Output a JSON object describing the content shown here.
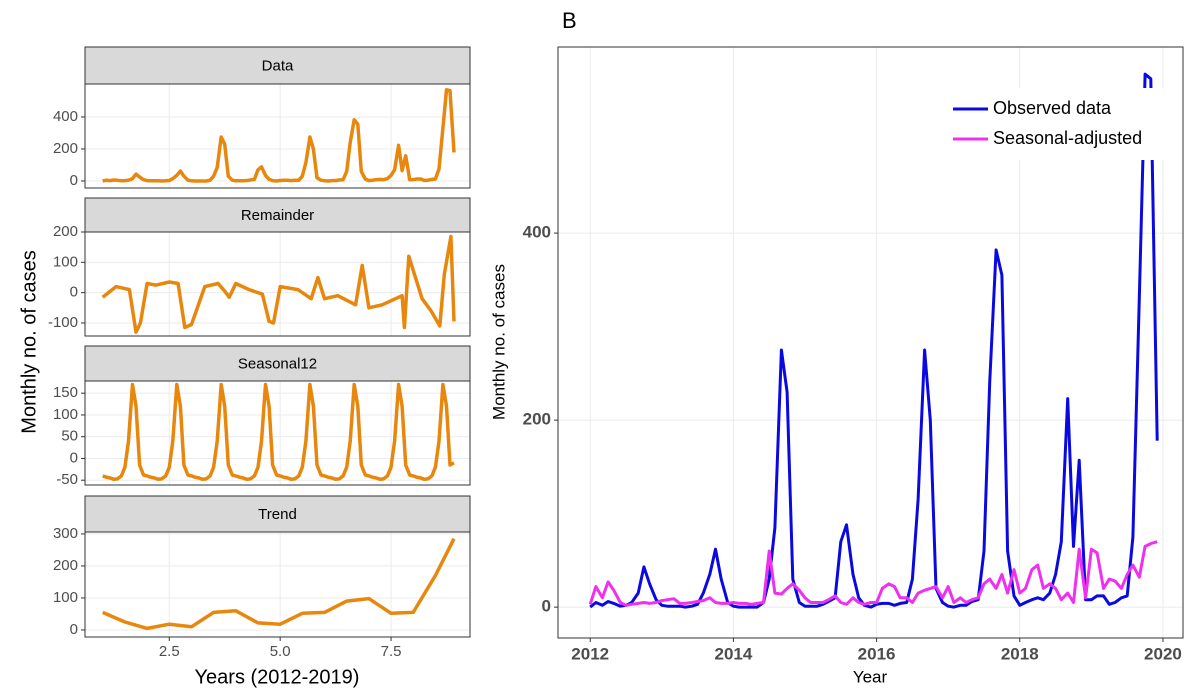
{
  "chart_data": [
    {
      "type": "facet-line",
      "xlabel": "Years (2012-2019)",
      "ylabel": "Monthly no. of cases",
      "color": "#e8870e",
      "xlim": [
        0.6,
        9.28
      ],
      "xticks": [
        2.5,
        {
          "value": 5,
          "label": "5.0"
        },
        7.5
      ],
      "grid": true,
      "panels": [
        {
          "title": "Data",
          "ylim": [
            -44,
            606
          ],
          "yticks": [
            0,
            200,
            400
          ],
          "x": [
            1,
            1.08,
            1.17,
            1.25,
            1.33,
            1.42,
            1.5,
            1.58,
            1.67,
            1.75,
            1.83,
            1.92,
            2,
            2.08,
            2.17,
            2.25,
            2.33,
            2.42,
            2.5,
            2.58,
            2.67,
            2.75,
            2.83,
            2.92,
            3,
            3.08,
            3.17,
            3.25,
            3.33,
            3.42,
            3.5,
            3.58,
            3.67,
            3.75,
            3.83,
            3.92,
            4,
            4.08,
            4.17,
            4.25,
            4.33,
            4.42,
            4.5,
            4.58,
            4.67,
            4.75,
            4.83,
            4.92,
            5,
            5.08,
            5.17,
            5.25,
            5.33,
            5.42,
            5.5,
            5.58,
            5.67,
            5.75,
            5.83,
            5.92,
            6,
            6.08,
            6.17,
            6.25,
            6.33,
            6.42,
            6.5,
            6.58,
            6.67,
            6.75,
            6.83,
            6.92,
            7,
            7.08,
            7.17,
            7.25,
            7.33,
            7.42,
            7.5,
            7.58,
            7.67,
            7.75,
            7.83,
            7.92,
            8,
            8.08,
            8.17,
            8.25,
            8.33,
            8.42,
            8.5,
            8.58,
            8.67,
            8.75,
            8.83,
            8.92
          ],
          "values": [
            0,
            5,
            2,
            6,
            4,
            1,
            2,
            5,
            15,
            43,
            25,
            8,
            2,
            1,
            1,
            1,
            0,
            1,
            3,
            15,
            35,
            62,
            30,
            5,
            1,
            0,
            0,
            0,
            0,
            5,
            30,
            85,
            275,
            230,
            30,
            5,
            1,
            1,
            1,
            3,
            6,
            10,
            70,
            88,
            35,
            10,
            2,
            0,
            3,
            4,
            4,
            2,
            4,
            5,
            30,
            115,
            275,
            200,
            20,
            5,
            1,
            0,
            2,
            2,
            6,
            8,
            60,
            240,
            382,
            355,
            60,
            12,
            2,
            5,
            8,
            10,
            8,
            15,
            35,
            70,
            223,
            65,
            157,
            8,
            8,
            12,
            12,
            3,
            5,
            10,
            12,
            75,
            330,
            570,
            565,
            178
          ]
        },
        {
          "title": "Remainder",
          "ylim": [
            -143,
            200
          ],
          "yticks": [
            -100,
            0,
            100,
            200
          ],
          "x": [
            1,
            1.3,
            1.6,
            1.75,
            1.85,
            2,
            2.2,
            2.5,
            2.7,
            2.85,
            3,
            3.3,
            3.6,
            3.75,
            3.85,
            4,
            4.3,
            4.6,
            4.75,
            4.85,
            5,
            5.4,
            5.7,
            5.85,
            6,
            6.3,
            6.7,
            6.85,
            7,
            7.3,
            7.6,
            7.75,
            7.8,
            7.9,
            8.2,
            8.4,
            8.6,
            8.7,
            8.85,
            8.92
          ],
          "values": [
            -15,
            20,
            10,
            -130,
            -100,
            30,
            25,
            35,
            30,
            -115,
            -105,
            20,
            30,
            5,
            -15,
            30,
            10,
            -5,
            -95,
            -100,
            20,
            10,
            -20,
            50,
            -20,
            -10,
            -40,
            90,
            -50,
            -40,
            -20,
            -10,
            -115,
            120,
            -20,
            -60,
            -110,
            60,
            185,
            -95
          ]
        },
        {
          "title": "Seasonal12",
          "ylim": [
            -61,
            178
          ],
          "yticks": [
            -50,
            0,
            50,
            100,
            150
          ],
          "x": [
            1,
            1.08,
            1.17,
            1.25,
            1.33,
            1.42,
            1.5,
            1.58,
            1.67,
            1.75,
            1.83,
            1.92,
            2,
            2.08,
            2.17,
            2.25,
            2.33,
            2.42,
            2.5,
            2.58,
            2.67,
            2.75,
            2.83,
            2.92,
            3,
            3.08,
            3.17,
            3.25,
            3.33,
            3.42,
            3.5,
            3.58,
            3.67,
            3.75,
            3.83,
            3.92,
            4,
            4.08,
            4.17,
            4.25,
            4.33,
            4.42,
            4.5,
            4.58,
            4.67,
            4.75,
            4.83,
            4.92,
            5,
            5.08,
            5.17,
            5.25,
            5.33,
            5.42,
            5.5,
            5.58,
            5.67,
            5.75,
            5.83,
            5.92,
            6,
            6.08,
            6.17,
            6.25,
            6.33,
            6.42,
            6.5,
            6.58,
            6.67,
            6.75,
            6.83,
            6.92,
            7,
            7.08,
            7.17,
            7.25,
            7.33,
            7.42,
            7.5,
            7.58,
            7.67,
            7.75,
            7.83,
            7.92,
            8,
            8.08,
            8.17,
            8.25,
            8.33,
            8.42,
            8.5,
            8.58,
            8.67,
            8.75,
            8.83,
            8.92
          ],
          "values": [
            -40,
            -43,
            -45,
            -48,
            -47,
            -40,
            -20,
            40,
            170,
            120,
            -15,
            -38,
            -40,
            -43,
            -45,
            -48,
            -47,
            -40,
            -20,
            40,
            170,
            120,
            -15,
            -38,
            -40,
            -43,
            -45,
            -48,
            -47,
            -40,
            -20,
            40,
            170,
            120,
            -15,
            -38,
            -40,
            -43,
            -45,
            -48,
            -47,
            -40,
            -20,
            40,
            170,
            120,
            -15,
            -38,
            -40,
            -43,
            -45,
            -48,
            -47,
            -40,
            -20,
            40,
            170,
            120,
            -15,
            -38,
            -40,
            -43,
            -45,
            -48,
            -47,
            -40,
            -20,
            40,
            170,
            120,
            -15,
            -38,
            -40,
            -43,
            -45,
            -48,
            -47,
            -40,
            -20,
            40,
            170,
            120,
            -15,
            -38,
            -40,
            -43,
            -45,
            -48,
            -47,
            -40,
            -20,
            40,
            170,
            120,
            -15,
            -10
          ]
        },
        {
          "title": "Trend",
          "ylim": [
            -22,
            306
          ],
          "yticks": [
            0,
            100,
            200,
            300
          ],
          "x": [
            1,
            1.5,
            2,
            2.5,
            3,
            3.5,
            4,
            4.5,
            5,
            5.5,
            6,
            6.5,
            7,
            7.5,
            8,
            8.5,
            8.92
          ],
          "values": [
            55,
            25,
            5,
            18,
            10,
            55,
            60,
            22,
            18,
            52,
            55,
            90,
            98,
            52,
            55,
            170,
            285
          ]
        }
      ]
    },
    {
      "type": "line",
      "title": "B",
      "xlabel": "Year",
      "ylabel": "Monthly no. of cases",
      "xlim": [
        2011.55,
        2020.28
      ],
      "xticks": [
        2012,
        2014,
        2016,
        2018,
        2020
      ],
      "ylim": [
        -33,
        599
      ],
      "yticks": [
        0,
        200,
        400
      ],
      "grid": true,
      "legend": "top-right",
      "x": [
        2012,
        2012.08,
        2012.17,
        2012.25,
        2012.33,
        2012.42,
        2012.5,
        2012.58,
        2012.67,
        2012.75,
        2012.83,
        2012.92,
        2013,
        2013.08,
        2013.17,
        2013.25,
        2013.33,
        2013.42,
        2013.5,
        2013.58,
        2013.67,
        2013.75,
        2013.83,
        2013.92,
        2014,
        2014.08,
        2014.17,
        2014.25,
        2014.33,
        2014.42,
        2014.5,
        2014.58,
        2014.67,
        2014.75,
        2014.83,
        2014.92,
        2015,
        2015.08,
        2015.17,
        2015.25,
        2015.33,
        2015.42,
        2015.5,
        2015.58,
        2015.67,
        2015.75,
        2015.83,
        2015.92,
        2016,
        2016.08,
        2016.17,
        2016.25,
        2016.33,
        2016.42,
        2016.5,
        2016.58,
        2016.67,
        2016.75,
        2016.83,
        2016.92,
        2017,
        2017.08,
        2017.17,
        2017.25,
        2017.33,
        2017.42,
        2017.5,
        2017.58,
        2017.67,
        2017.75,
        2017.83,
        2017.92,
        2018,
        2018.08,
        2018.17,
        2018.25,
        2018.33,
        2018.42,
        2018.5,
        2018.58,
        2018.67,
        2018.75,
        2018.83,
        2018.92,
        2019,
        2019.08,
        2019.17,
        2019.25,
        2019.33,
        2019.42,
        2019.5,
        2019.58,
        2019.67,
        2019.75,
        2019.83,
        2019.92
      ],
      "series": [
        {
          "name": "Observed data",
          "color": "#0a0ae0",
          "values": [
            0,
            5,
            2,
            6,
            4,
            1,
            2,
            5,
            15,
            43,
            25,
            8,
            2,
            1,
            1,
            1,
            0,
            1,
            3,
            15,
            35,
            62,
            30,
            5,
            1,
            0,
            0,
            0,
            0,
            5,
            30,
            85,
            275,
            230,
            30,
            5,
            1,
            1,
            1,
            3,
            6,
            10,
            70,
            88,
            35,
            10,
            2,
            0,
            3,
            4,
            4,
            2,
            4,
            5,
            30,
            115,
            275,
            200,
            20,
            5,
            1,
            0,
            2,
            2,
            6,
            8,
            60,
            240,
            382,
            355,
            60,
            12,
            2,
            5,
            8,
            10,
            8,
            15,
            35,
            70,
            223,
            65,
            157,
            8,
            8,
            12,
            12,
            3,
            5,
            10,
            12,
            75,
            330,
            570,
            565,
            178
          ]
        },
        {
          "name": "Seasonal-adjusted",
          "color": "#f030f0",
          "values": [
            3,
            22,
            10,
            27,
            18,
            5,
            2,
            3,
            4,
            5,
            4,
            5,
            7,
            8,
            9,
            4,
            4,
            5,
            6,
            7,
            10,
            5,
            4,
            4,
            5,
            4,
            4,
            3,
            4,
            5,
            60,
            15,
            14,
            20,
            25,
            18,
            10,
            5,
            5,
            5,
            8,
            12,
            5,
            3,
            10,
            5,
            3,
            5,
            5,
            20,
            25,
            22,
            10,
            10,
            5,
            15,
            18,
            20,
            22,
            10,
            22,
            5,
            10,
            5,
            8,
            10,
            25,
            30,
            20,
            35,
            15,
            40,
            15,
            20,
            40,
            45,
            20,
            25,
            20,
            8,
            15,
            5,
            62,
            10,
            62,
            58,
            20,
            30,
            28,
            20,
            35,
            45,
            32,
            65,
            68,
            70
          ]
        }
      ]
    }
  ]
}
